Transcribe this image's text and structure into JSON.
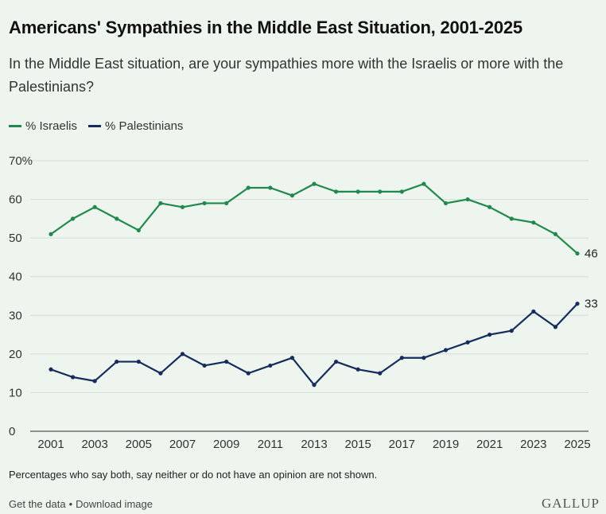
{
  "title": "Americans' Sympathies in the Middle East Situation, 2001-2025",
  "subtitle": "In the Middle East situation, are your sympathies more with the Israelis or more with the Palestinians?",
  "note": "Percentages who say both, say neither or do not have an opinion are not shown.",
  "footer": {
    "get_data": "Get the data",
    "separator": "•",
    "download": "Download image"
  },
  "brand": "GALLUP",
  "colors": {
    "israelis": "#1f8a4c",
    "palestinians": "#152c5e",
    "grid": "#d4dcd4",
    "axis": "#555555"
  },
  "chart_data": {
    "type": "line",
    "x": [
      2001,
      2002,
      2003,
      2004,
      2005,
      2006,
      2007,
      2008,
      2009,
      2010,
      2011,
      2012,
      2013,
      2014,
      2015,
      2016,
      2017,
      2018,
      2019,
      2020,
      2021,
      2022,
      2023,
      2024,
      2025
    ],
    "series": [
      {
        "name": "% Israelis",
        "color": "#1f8a4c",
        "values": [
          51,
          55,
          58,
          55,
          52,
          59,
          58,
          59,
          59,
          63,
          63,
          61,
          64,
          62,
          62,
          62,
          62,
          64,
          59,
          60,
          58,
          55,
          54,
          51,
          46
        ]
      },
      {
        "name": "% Palestinians",
        "color": "#152c5e",
        "values": [
          16,
          14,
          13,
          18,
          18,
          15,
          20,
          17,
          18,
          15,
          17,
          19,
          12,
          18,
          16,
          15,
          19,
          19,
          21,
          23,
          25,
          26,
          31,
          27,
          33
        ]
      }
    ],
    "y_ticks": [
      "0",
      "10",
      "20",
      "30",
      "40",
      "50",
      "60",
      "70%"
    ],
    "x_ticks": [
      "2001",
      "2003",
      "2005",
      "2007",
      "2009",
      "2011",
      "2013",
      "2015",
      "2017",
      "2019",
      "2021",
      "2023",
      "2025"
    ],
    "end_labels": [
      "46",
      "33"
    ],
    "ylim": [
      0,
      70
    ],
    "grid": true,
    "legend": "top-left"
  }
}
